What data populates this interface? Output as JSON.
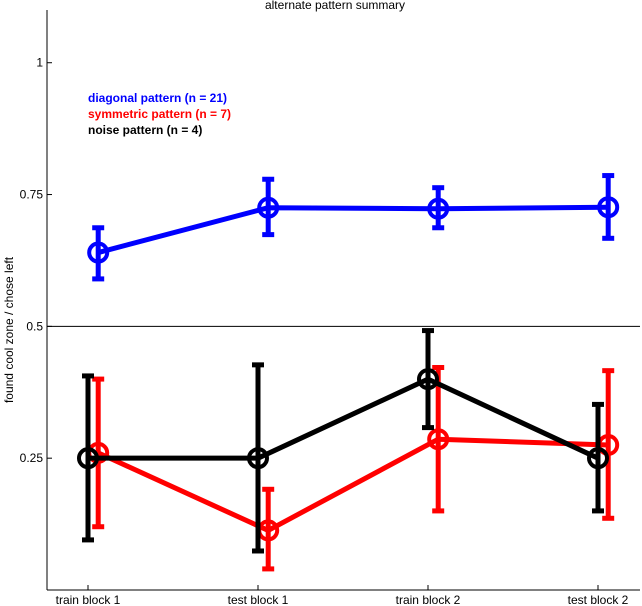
{
  "chart_data": {
    "type": "line",
    "title": "alternate pattern summary",
    "xlabel": "",
    "ylabel": "found cool zone / chose left",
    "categories": [
      "train block 1",
      "test block 1",
      "train block 2",
      "test block 2"
    ],
    "ylim": [
      0,
      1.1
    ],
    "yticks": [
      0.25,
      0.5,
      0.75,
      1
    ],
    "ytick_labels": [
      "0.25",
      "0.5",
      "0.75",
      "1"
    ],
    "reference_line_y": 0.5,
    "grid": false,
    "legend_position": "top-left",
    "series": [
      {
        "name": "diagonal pattern (n = 21)",
        "color": "#0000ff",
        "offset": 0.06,
        "values": [
          0.64,
          0.725,
          0.723,
          0.726
        ],
        "err_low": [
          0.59,
          0.674,
          0.687,
          0.667
        ],
        "err_high": [
          0.687,
          0.779,
          0.763,
          0.786
        ]
      },
      {
        "name": "symmetric pattern (n = 7)",
        "color": "#ff0000",
        "offset": 0.06,
        "values": [
          0.26,
          0.113,
          0.286,
          0.275
        ],
        "err_low": [
          0.12,
          0.04,
          0.15,
          0.136
        ],
        "err_high": [
          0.4,
          0.191,
          0.422,
          0.416
        ]
      },
      {
        "name": "noise pattern (n = 4)",
        "color": "#000000",
        "offset": 0,
        "values": [
          0.25,
          0.25,
          0.4,
          0.25
        ],
        "err_low": [
          0.095,
          0.074,
          0.308,
          0.15
        ],
        "err_high": [
          0.406,
          0.427,
          0.492,
          0.352
        ]
      }
    ]
  }
}
